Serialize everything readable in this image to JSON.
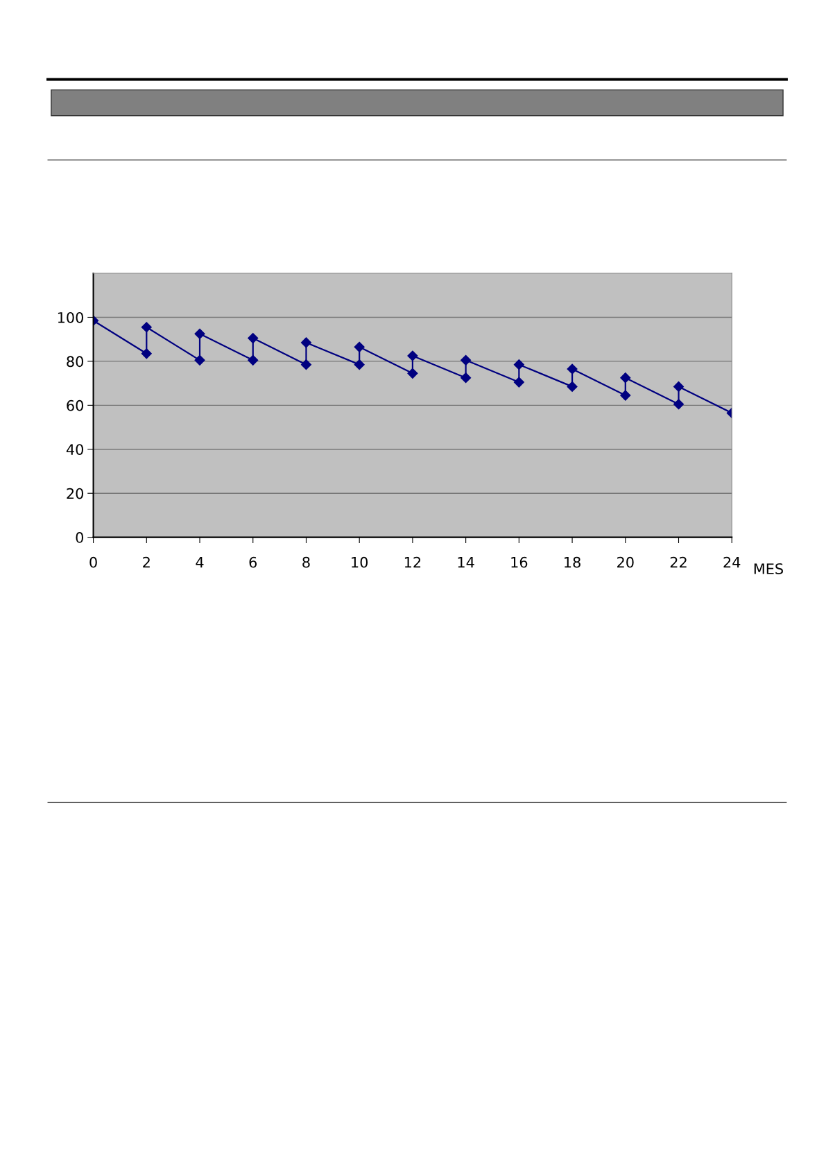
{
  "chart_data": {
    "type": "line",
    "xlabel": "MES",
    "series": [
      {
        "color": "#000080",
        "x": [
          0,
          2,
          2,
          4,
          4,
          6,
          6,
          8,
          8,
          10,
          10,
          12,
          12,
          14,
          14,
          16,
          16,
          18,
          18,
          20,
          20,
          22,
          22,
          24
        ],
        "values": [
          98.5,
          83.5,
          95.5,
          80.5,
          92.5,
          80.5,
          90.5,
          78.5,
          88.5,
          78.5,
          86.5,
          74.5,
          82.5,
          72.5,
          80.5,
          70.5,
          78.5,
          68.5,
          76.5,
          64.5,
          72.5,
          60.5,
          68.5,
          56.5
        ]
      }
    ],
    "xlim": [
      0,
      24
    ],
    "xticks": [
      0,
      2,
      4,
      6,
      8,
      10,
      12,
      14,
      16,
      18,
      20,
      22,
      24
    ],
    "ylim": [
      0,
      120
    ],
    "yticks": [
      0,
      20,
      40,
      60,
      80,
      100
    ],
    "grid": "y",
    "marker": "diamond",
    "line_style": "solid"
  }
}
